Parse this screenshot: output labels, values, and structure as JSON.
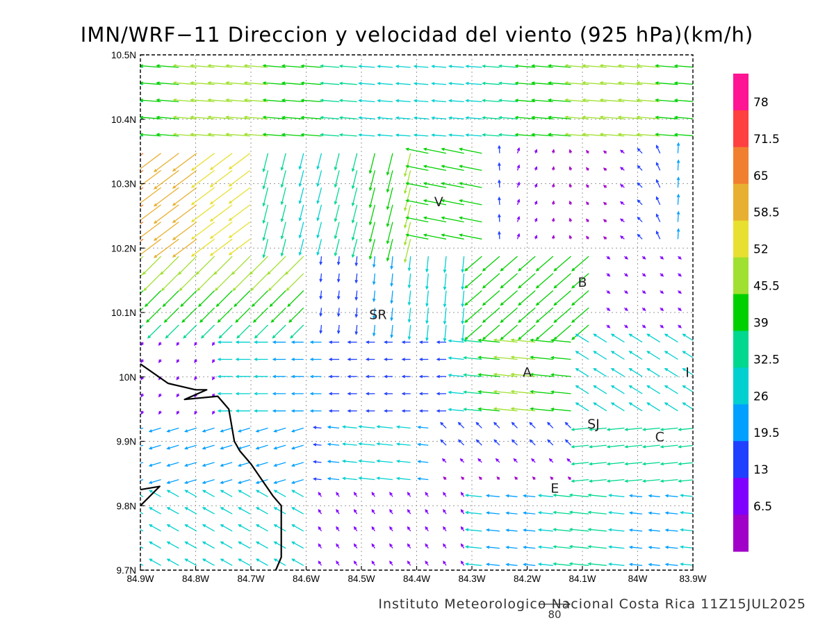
{
  "title": "IMN/WRF−11 Direccion y velocidad del viento (925 hPa)(km/h)",
  "credit": "Instituto Meteorologico Nacional Costa Rica  11Z15JUL2025",
  "reference_vector": {
    "label": "80"
  },
  "axes": {
    "x_ticks": [
      "84.9W",
      "84.8W",
      "84.7W",
      "84.6W",
      "84.5W",
      "84.4W",
      "84.3W",
      "84.2W",
      "84.1W",
      "84W",
      "83.9W"
    ],
    "y_ticks": [
      "10.5N",
      "10.4N",
      "10.3N",
      "10.2N",
      "10.1N",
      "10N",
      "9.9N",
      "9.8N",
      "9.7N"
    ],
    "lon_range": [
      -84.9,
      -83.9
    ],
    "lat_range": [
      9.7,
      10.5
    ],
    "grid": "dotted"
  },
  "colorbar": {
    "labels": [
      "78",
      "71.5",
      "65",
      "58.5",
      "52",
      "45.5",
      "39",
      "32.5",
      "26",
      "19.5",
      "13",
      "6.5"
    ],
    "colors": [
      "#ff1493",
      "#ff4040",
      "#f08030",
      "#e8b030",
      "#e8e030",
      "#a0e030",
      "#00d000",
      "#00d890",
      "#00d0d0",
      "#00a0ff",
      "#2040ff",
      "#8000ff",
      "#a000c8"
    ]
  },
  "cities": [
    {
      "code": "V",
      "lon": -84.36,
      "lat": 10.265
    },
    {
      "code": "SR",
      "lon": -84.47,
      "lat": 10.09
    },
    {
      "code": "B",
      "lon": -84.1,
      "lat": 10.14
    },
    {
      "code": "A",
      "lon": -84.2,
      "lat": 10.0
    },
    {
      "code": "I",
      "lon": -83.91,
      "lat": 10.0
    },
    {
      "code": "SJ",
      "lon": -84.08,
      "lat": 9.92
    },
    {
      "code": "C",
      "lon": -83.96,
      "lat": 9.9
    },
    {
      "code": "E",
      "lon": -84.15,
      "lat": 9.82
    }
  ],
  "coastline": [
    [
      -84.9,
      10.02
    ],
    [
      -84.85,
      9.99
    ],
    [
      -84.8,
      9.98
    ],
    [
      -84.78,
      9.98
    ],
    [
      -84.82,
      9.965
    ],
    [
      -84.76,
      9.97
    ],
    [
      -84.74,
      9.95
    ],
    [
      -84.73,
      9.9
    ],
    [
      -84.72,
      9.885
    ],
    [
      -84.7,
      9.865
    ],
    [
      -84.68,
      9.84
    ],
    [
      -84.66,
      9.815
    ],
    [
      -84.645,
      9.8
    ],
    [
      -84.645,
      9.75
    ],
    [
      -84.645,
      9.72
    ],
    [
      -84.655,
      9.7
    ]
  ],
  "coastline_inlet": [
    [
      -84.9,
      9.8
    ],
    [
      -84.865,
      9.83
    ],
    [
      -84.9,
      9.825
    ]
  ]
}
